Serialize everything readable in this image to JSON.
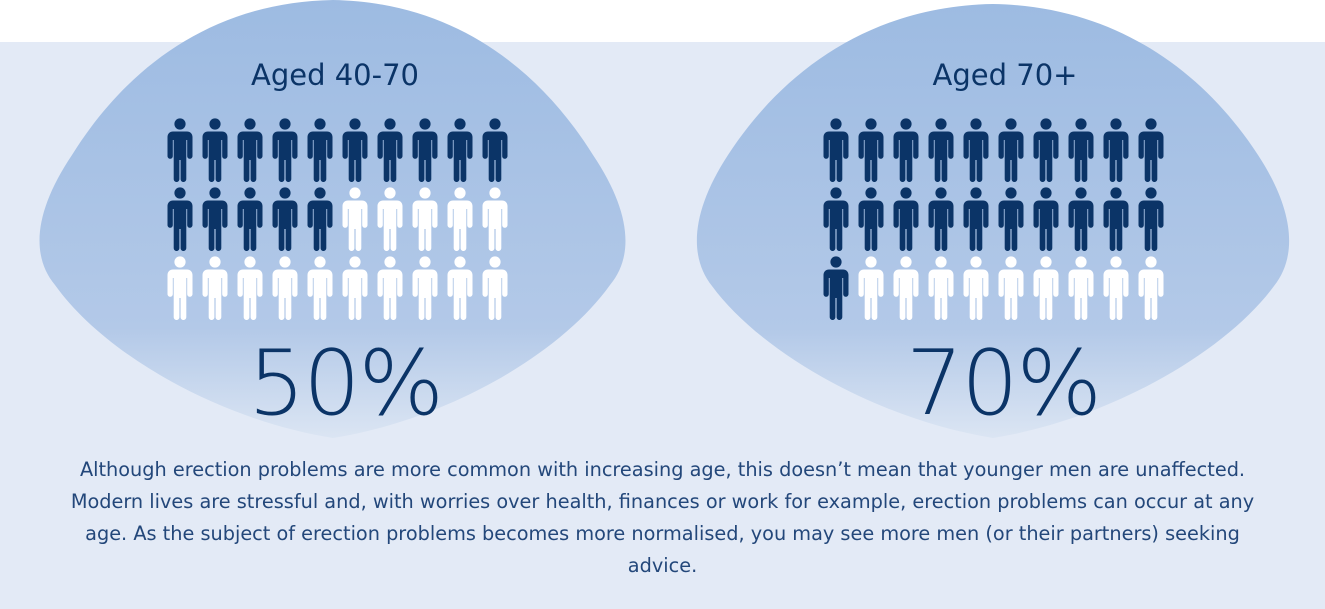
{
  "colors": {
    "page_background": "#ffffff",
    "panel_background": "#e3eaf6",
    "blob_top": "#9dbbe2",
    "blob_bottom": "#c9d8ee",
    "affected": "#0b3467",
    "unaffected": "#ffffff",
    "text": "#0b3467"
  },
  "groups": [
    {
      "heading": "Aged 40-70",
      "percent_label": "50%",
      "affected_fraction": 0.5,
      "icon_name": "man-figure-icon"
    },
    {
      "heading": "Aged 70+",
      "percent_label": "70%",
      "affected_fraction": 0.7,
      "icon_name": "man-figure-icon"
    }
  ],
  "caption": "Although erection problems are more common with increasing age, this doesn’t mean that younger men are unaffected. Modern lives are stressful and, with worries over health, finances or work for example, erection problems can occur at any age. As the subject of erection problems becomes more normalised, you may see more men (or their partners) seeking advice."
}
